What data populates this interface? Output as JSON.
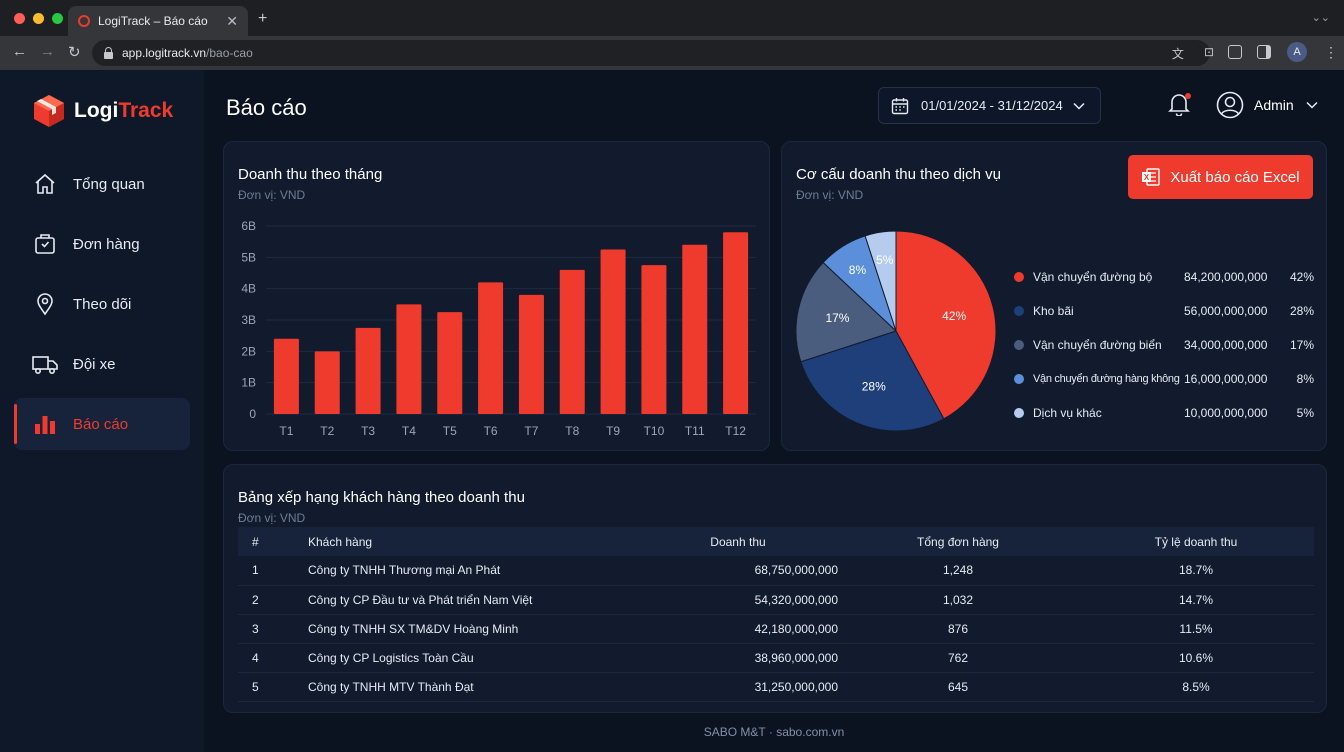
{
  "browser": {
    "tab_title": "LogiTrack – Báo cáo",
    "url_domain": "app.logitrack.vn",
    "url_path": "/bao-cao",
    "profile_initial": "A"
  },
  "sidebar": {
    "brand_left": "Logi",
    "brand_right": "Track",
    "items": [
      {
        "label": "Tổng quan",
        "icon": "home-icon"
      },
      {
        "label": "Đơn hàng",
        "icon": "package-icon"
      },
      {
        "label": "Theo dõi",
        "icon": "map-pin-icon"
      },
      {
        "label": "Đội xe",
        "icon": "truck-icon"
      },
      {
        "label": "Báo cáo",
        "icon": "bar-chart-icon",
        "active": true
      }
    ]
  },
  "header": {
    "title": "Báo cáo",
    "date_range": "01/01/2024 - 31/12/2024",
    "user_name": "Admin"
  },
  "revenue_card": {
    "title": "Doanh thu theo tháng",
    "unit": "Đơn vị: VND"
  },
  "mix_card": {
    "title": "Cơ cấu doanh thu theo dịch vụ",
    "unit": "Đơn vị: VND",
    "export_label": "Xuất báo cáo Excel"
  },
  "ranking": {
    "title": "Bảng xếp hạng khách hàng theo doanh thu",
    "unit": "Đơn vị: VND",
    "columns": [
      "#",
      "Khách hàng",
      "Doanh thu",
      "Tổng đơn hàng",
      "Tỷ lệ doanh thu"
    ],
    "rows": [
      {
        "rank": "1",
        "name": "Công ty TNHH Thương mại An Phát",
        "revenue": "68,750,000,000",
        "orders": "1,248",
        "ratio": "18.7%"
      },
      {
        "rank": "2",
        "name": "Công ty CP Đầu tư và Phát triển Nam Việt",
        "revenue": "54,320,000,000",
        "orders": "1,032",
        "ratio": "14.7%"
      },
      {
        "rank": "3",
        "name": "Công ty TNHH SX TM&DV Hoàng Minh",
        "revenue": "42,180,000,000",
        "orders": "876",
        "ratio": "11.5%"
      },
      {
        "rank": "4",
        "name": "Công ty CP Logistics Toàn Cầu",
        "revenue": "38,960,000,000",
        "orders": "762",
        "ratio": "10.6%"
      },
      {
        "rank": "5",
        "name": "Công ty TNHH MTV Thành Đạt",
        "revenue": "31,250,000,000",
        "orders": "645",
        "ratio": "8.5%"
      }
    ]
  },
  "footer": "SABO M&T · sabo.com.vn",
  "colors": {
    "accent": "#ef3b2d",
    "background": "#0b1220",
    "card": "#111b2d"
  },
  "chart_data": [
    {
      "type": "bar",
      "categories": [
        "T1",
        "T2",
        "T3",
        "T4",
        "T5",
        "T6",
        "T7",
        "T8",
        "T9",
        "T10",
        "T11",
        "T12"
      ],
      "values": [
        2.4,
        2.0,
        2.75,
        3.5,
        3.25,
        4.2,
        3.8,
        4.6,
        5.25,
        4.75,
        5.4,
        5.8
      ],
      "ytick_labels": [
        "0",
        "1B",
        "2B",
        "3B",
        "4B",
        "5B",
        "6B"
      ],
      "ylim": [
        0,
        6
      ],
      "grid": true,
      "color": "#ef3b2d"
    },
    {
      "type": "pie",
      "slices": [
        {
          "label": "Vận chuyển đường bộ",
          "value": 84200000000,
          "value_text": "84,200,000,000",
          "pct": "42%",
          "color": "#ef3b2d"
        },
        {
          "label": "Kho bãi",
          "value": 56000000000,
          "value_text": "56,000,000,000",
          "pct": "28%",
          "color": "#1e3f7a"
        },
        {
          "label": "Vận chuyển đường biển",
          "value": 34000000000,
          "value_text": "34,000,000,000",
          "pct": "17%",
          "color": "#4b5d7e"
        },
        {
          "label": "Vận chuyển đường hàng không",
          "value": 16000000000,
          "value_text": "16,000,000,000",
          "pct": "8%",
          "color": "#5b8fd9"
        },
        {
          "label": "Dịch vụ khác",
          "value": 10000000000,
          "value_text": "10,000,000,000",
          "pct": "5%",
          "color": "#b5ccef"
        }
      ]
    }
  ]
}
